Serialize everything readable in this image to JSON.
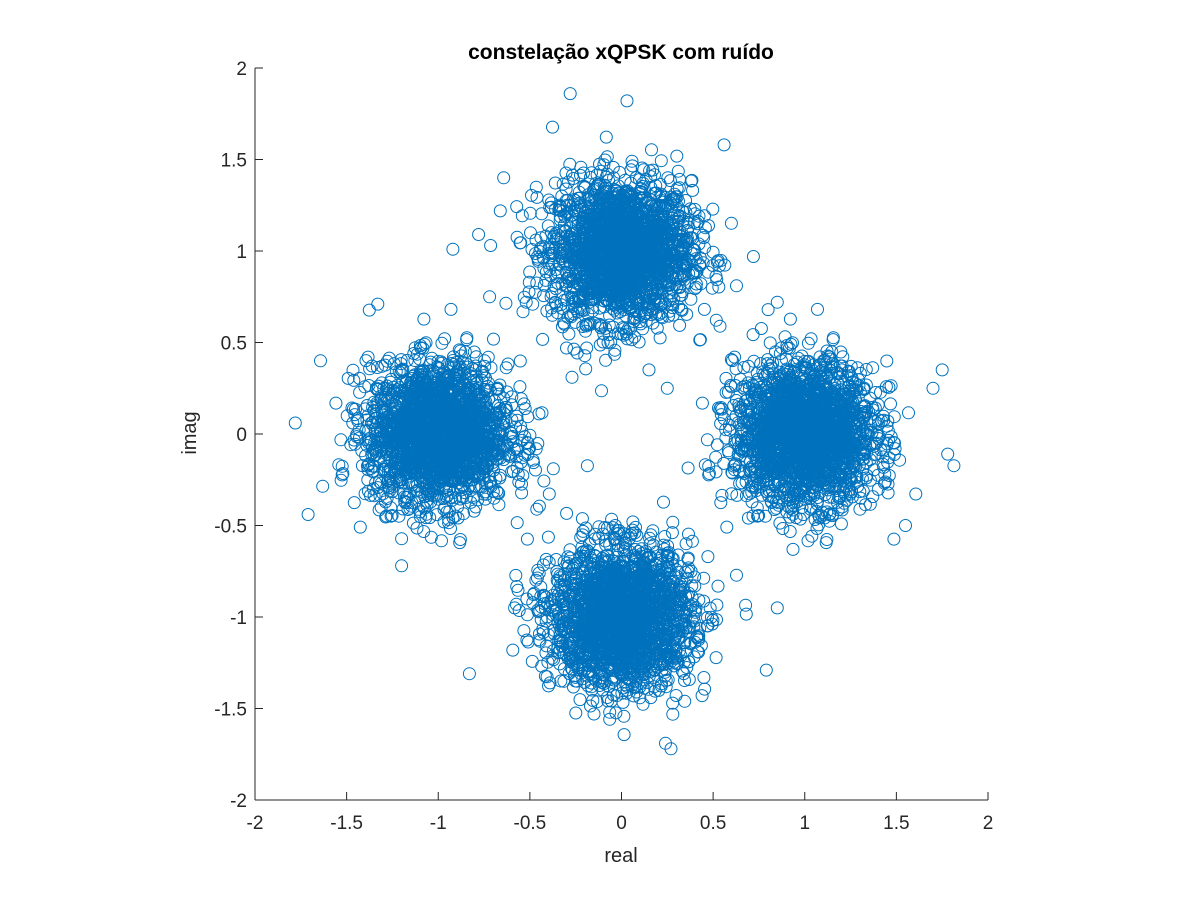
{
  "chart_data": {
    "type": "scatter",
    "title": "constelação xQPSK com ruído",
    "xlabel": "real",
    "ylabel": "imag",
    "xlim": [
      -2,
      2
    ],
    "ylim": [
      -2,
      2
    ],
    "xticks": [
      -2,
      -1.5,
      -1,
      -0.5,
      0,
      0.5,
      1,
      1.5,
      2
    ],
    "yticks": [
      -2,
      -1.5,
      -1,
      -0.5,
      0,
      0.5,
      1,
      1.5,
      2
    ],
    "xtick_labels": [
      "-2",
      "-1.5",
      "-1",
      "-0.5",
      "0",
      "0.5",
      "1",
      "1.5",
      "2"
    ],
    "ytick_labels": [
      "-2",
      "-1.5",
      "-1",
      "-0.5",
      "0",
      "0.5",
      "1",
      "1.5",
      "2"
    ],
    "grid": false,
    "marker": "open-circle",
    "series": [
      {
        "color": "#0072BD",
        "clusters": [
          {
            "center": [
              0,
              1
            ],
            "std": 0.19
          },
          {
            "center": [
              1,
              0
            ],
            "std": 0.19
          },
          {
            "center": [
              0,
              -1
            ],
            "std": 0.19
          },
          {
            "center": [
              -1,
              0
            ],
            "std": 0.19
          }
        ],
        "outliers": [
          [
            -0.28,
            1.86
          ],
          [
            0.03,
            1.82
          ],
          [
            -0.92,
            1.01
          ],
          [
            -0.78,
            1.09
          ],
          [
            -0.52,
            0.72
          ],
          [
            -0.19,
            0.47
          ],
          [
            0.15,
            0.35
          ],
          [
            0.25,
            0.25
          ],
          [
            -0.45,
            0.11
          ],
          [
            -0.27,
            0.31
          ],
          [
            -0.72,
            0.75
          ],
          [
            0.56,
            1.58
          ],
          [
            0.72,
            0.97
          ],
          [
            0.85,
            0.72
          ],
          [
            0.8,
            0.68
          ],
          [
            1.78,
            -0.11
          ],
          [
            1.7,
            0.25
          ],
          [
            1.75,
            0.35
          ],
          [
            1.55,
            -0.5
          ],
          [
            0.85,
            -0.95
          ],
          [
            0.79,
            -1.29
          ],
          [
            -0.83,
            -1.31
          ],
          [
            -1.71,
            -0.44
          ],
          [
            -1.78,
            0.06
          ],
          [
            -1.33,
            0.71
          ],
          [
            -1.2,
            -0.72
          ],
          [
            0.24,
            -1.69
          ],
          [
            0.27,
            -1.72
          ],
          [
            -0.39,
            -1.36
          ],
          [
            -0.3,
            0.47
          ]
        ]
      }
    ]
  }
}
